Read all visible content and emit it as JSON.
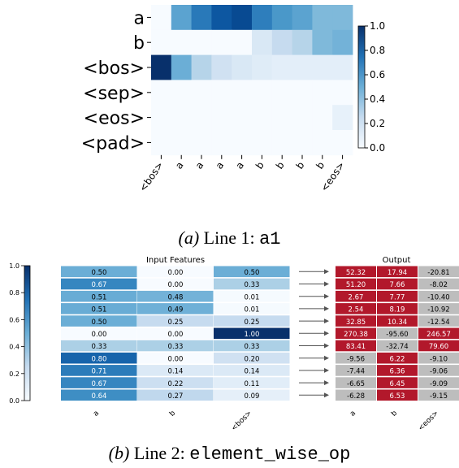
{
  "colors": {
    "blues_light": "#f7fbff",
    "blues_dark": "#08306b",
    "output_positive": "#b2182b",
    "output_negative": "#bdbdbd",
    "arrow": "#555555"
  },
  "captions": {
    "a_label": "(a)",
    "a_text": "Line 1:",
    "a_code": "a1",
    "b_label": "(b)",
    "b_text": "Line 2:",
    "b_code": "element_wise_op"
  },
  "chart_data": [
    {
      "type": "heatmap",
      "name": "attention",
      "rows": [
        "a",
        "b",
        "<bos>",
        "<sep>",
        "<eos>",
        "<pad>"
      ],
      "cols": [
        "<bos>",
        "a",
        "a",
        "a",
        "a",
        "b",
        "b",
        "b",
        "b",
        "<eos>"
      ],
      "values": [
        [
          0.0,
          0.55,
          0.72,
          0.85,
          0.9,
          0.7,
          0.6,
          0.55,
          0.45,
          0.45
        ],
        [
          0.0,
          0.0,
          0.0,
          0.0,
          0.0,
          0.15,
          0.25,
          0.3,
          0.45,
          0.48
        ],
        [
          1.0,
          0.5,
          0.3,
          0.2,
          0.15,
          0.12,
          0.1,
          0.1,
          0.1,
          0.1
        ],
        [
          0.0,
          0.0,
          0.0,
          0.0,
          0.0,
          0.0,
          0.0,
          0.0,
          0.0,
          0.0
        ],
        [
          0.0,
          0.0,
          0.0,
          0.0,
          0.0,
          0.0,
          0.0,
          0.0,
          0.0,
          0.08
        ],
        [
          0.0,
          0.0,
          0.0,
          0.0,
          0.0,
          0.0,
          0.0,
          0.0,
          0.0,
          0.0
        ]
      ],
      "colorbar": {
        "range": [
          0.0,
          1.0
        ],
        "ticks": [
          "0.0",
          "0.2",
          "0.4",
          "0.6",
          "0.8",
          "1.0"
        ]
      }
    },
    {
      "type": "table",
      "name": "element_wise_op",
      "input_title": "Input Features",
      "output_title": "Output",
      "input_cols": [
        "a",
        "b",
        "<bos>"
      ],
      "output_cols": [
        "a",
        "b",
        "<eos>"
      ],
      "inputs": [
        [
          "0.50",
          "0.00",
          "0.50"
        ],
        [
          "0.67",
          "0.00",
          "0.33"
        ],
        [
          "0.51",
          "0.48",
          "0.01"
        ],
        [
          "0.51",
          "0.49",
          "0.01"
        ],
        [
          "0.50",
          "0.25",
          "0.25"
        ],
        [
          "0.00",
          "0.00",
          "1.00"
        ],
        [
          "0.33",
          "0.33",
          "0.33"
        ],
        [
          "0.80",
          "0.00",
          "0.20"
        ],
        [
          "0.71",
          "0.14",
          "0.14"
        ],
        [
          "0.67",
          "0.22",
          "0.11"
        ],
        [
          "0.64",
          "0.27",
          "0.09"
        ]
      ],
      "outputs": [
        [
          "52.32",
          "17.94",
          "-20.81"
        ],
        [
          "51.20",
          "7.66",
          "-8.02"
        ],
        [
          "2.67",
          "7.77",
          "-10.40"
        ],
        [
          "2.54",
          "8.19",
          "-10.92"
        ],
        [
          "32.85",
          "10.34",
          "-12.54"
        ],
        [
          "270.38",
          "-95.60",
          "246.57"
        ],
        [
          "83.41",
          "-32.74",
          "79.60"
        ],
        [
          "-9.56",
          "6.22",
          "-9.10"
        ],
        [
          "-7.44",
          "6.36",
          "-9.06"
        ],
        [
          "-6.65",
          "6.45",
          "-9.09"
        ],
        [
          "-6.28",
          "6.53",
          "-9.15"
        ]
      ],
      "colorbar": {
        "range": [
          0.0,
          1.0
        ],
        "ticks": [
          "0.0",
          "0.2",
          "0.4",
          "0.6",
          "0.8",
          "1.0"
        ]
      }
    }
  ]
}
